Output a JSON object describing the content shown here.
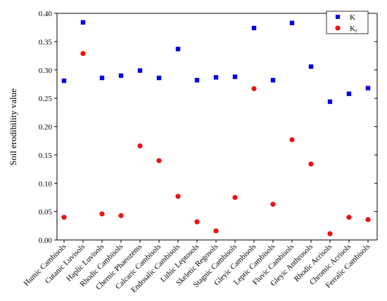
{
  "chart_data": {
    "type": "scatter",
    "title": "",
    "xlabel": "",
    "ylabel": "Soil erodibility value",
    "ylim": [
      0,
      0.4
    ],
    "yticks": [
      "0.00",
      "0.05",
      "0.10",
      "0.15",
      "0.20",
      "0.25",
      "0.30",
      "0.35",
      "0.40"
    ],
    "grid": false,
    "legend_position": "top-right",
    "categories": [
      "Humic Cambisols",
      "Cutanic Luvisols",
      "Haplic Luvisols",
      "Rhodic Cambisols",
      "Chernic Phaeozems",
      "Calcaric Cambisols",
      "Endosalic Cambisols",
      "Lithic Leptosols",
      "Skeletic Regosols",
      "Stagnic Cambisols",
      "Gleyic Cambisols",
      "Leptic Cambisols",
      "Fluvic Cambisols",
      "Gleyic Anthrosols",
      "Rhodic Acrisols",
      "Chromic Acrisols",
      "Ferralic Cambisols"
    ],
    "series": [
      {
        "name": "K",
        "marker": "square",
        "color": "#0000ee",
        "values": [
          0.281,
          0.384,
          0.286,
          0.29,
          0.299,
          0.286,
          0.337,
          0.282,
          0.287,
          0.288,
          0.374,
          0.282,
          0.383,
          0.306,
          0.244,
          0.258,
          0.268
        ]
      },
      {
        "name": "Kr",
        "name_main": "K",
        "name_sub": "r",
        "marker": "circle",
        "color": "#ee1111",
        "values": [
          0.04,
          0.329,
          0.046,
          0.043,
          0.166,
          0.14,
          0.077,
          0.032,
          0.016,
          0.075,
          0.267,
          0.063,
          0.177,
          0.134,
          0.011,
          0.04,
          0.036
        ]
      }
    ]
  }
}
